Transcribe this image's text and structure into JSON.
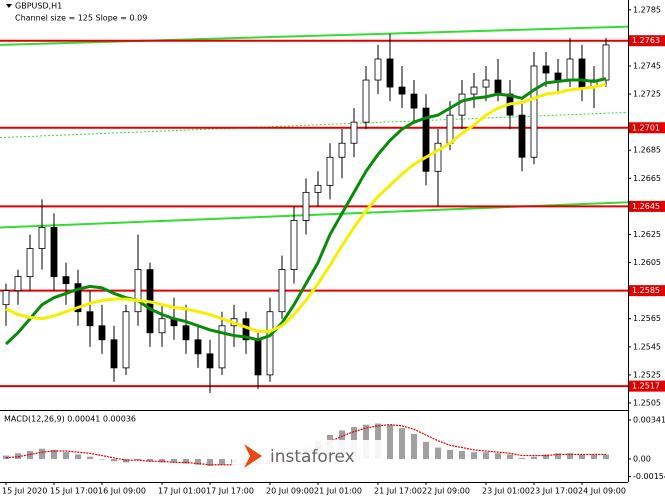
{
  "chart_data": {
    "type": "candlestick",
    "title": "GBPUSD,H1",
    "subtitle": "Channel size = 125 Slope = 0.09",
    "categories": [
      "15 Jul 2020",
      null,
      null,
      null,
      "15 Jul 17:00",
      null,
      null,
      null,
      "16 Jul 09:00",
      null,
      null,
      null,
      null,
      "17 Jul 01:00",
      null,
      null,
      null,
      "17 Jul 17:00",
      null,
      null,
      null,
      null,
      "20 Jul 09:00",
      null,
      null,
      null,
      "21 Jul 01:00",
      null,
      null,
      null,
      null,
      "21 Jul 17:00",
      null,
      null,
      null,
      "22 Jul 09:00",
      null,
      null,
      null,
      null,
      "23 Jul 01:00",
      null,
      null,
      null,
      "23 Jul 17:00",
      null,
      null,
      null,
      "24 Jul 09:00",
      null,
      null
    ],
    "open": [
      1.2575,
      1.2585,
      1.2595,
      1.2615,
      1.263,
      1.2595,
      1.259,
      1.257,
      1.256,
      1.255,
      1.253,
      1.257,
      1.26,
      1.2555,
      1.2565,
      1.256,
      1.255,
      1.254,
      1.253,
      1.256,
      1.2565,
      1.255,
      1.2525,
      1.257,
      1.26,
      1.2635,
      1.2655,
      1.266,
      1.268,
      1.269,
      1.2705,
      1.2735,
      1.275,
      1.273,
      1.2725,
      1.2715,
      1.267,
      1.269,
      1.271,
      1.2725,
      1.273,
      1.2735,
      1.2725,
      1.271,
      1.268,
      1.2745,
      1.274,
      1.2735,
      1.275,
      1.273,
      1.2735
    ],
    "high": [
      1.259,
      1.26,
      1.2625,
      1.265,
      1.264,
      1.2605,
      1.26,
      1.2585,
      1.2575,
      1.256,
      1.2575,
      1.2625,
      1.2605,
      1.2575,
      1.258,
      1.2575,
      1.256,
      1.255,
      1.257,
      1.2575,
      1.257,
      1.2555,
      1.258,
      1.261,
      1.2645,
      1.2665,
      1.267,
      1.269,
      1.27,
      1.2715,
      1.2745,
      1.276,
      1.2768,
      1.2745,
      1.2735,
      1.2725,
      1.27,
      1.272,
      1.2735,
      1.274,
      1.2745,
      1.275,
      1.2735,
      1.272,
      1.2755,
      1.2755,
      1.275,
      1.2765,
      1.276,
      1.2745,
      1.2765
    ],
    "low": [
      1.256,
      1.2575,
      1.2585,
      1.26,
      1.2585,
      1.2575,
      1.256,
      1.2545,
      1.254,
      1.252,
      1.2525,
      1.256,
      1.2545,
      1.2545,
      1.255,
      1.254,
      1.253,
      1.2512,
      1.2525,
      1.2545,
      1.254,
      1.2515,
      1.252,
      1.2565,
      1.259,
      1.2625,
      1.2645,
      1.265,
      1.2665,
      1.268,
      1.27,
      1.2725,
      1.272,
      1.2715,
      1.2705,
      1.266,
      1.2645,
      1.2685,
      1.27,
      1.2715,
      1.272,
      1.272,
      1.27,
      1.267,
      1.2675,
      1.273,
      1.2725,
      1.273,
      1.272,
      1.2715,
      1.273
    ],
    "close": [
      1.2585,
      1.2595,
      1.2615,
      1.263,
      1.2595,
      1.259,
      1.257,
      1.256,
      1.255,
      1.253,
      1.257,
      1.26,
      1.2555,
      1.2565,
      1.256,
      1.255,
      1.254,
      1.253,
      1.256,
      1.2565,
      1.255,
      1.2525,
      1.257,
      1.26,
      1.2635,
      1.2655,
      1.266,
      1.268,
      1.269,
      1.2705,
      1.2735,
      1.275,
      1.273,
      1.2725,
      1.2715,
      1.267,
      1.269,
      1.271,
      1.2725,
      1.273,
      1.2735,
      1.2725,
      1.271,
      1.268,
      1.2745,
      1.274,
      1.2735,
      1.275,
      1.273,
      1.2735,
      1.276
    ],
    "series": [
      {
        "color": "#0a8a0a",
        "values": [
          1.2547,
          1.2555,
          1.2565,
          1.2575,
          1.258,
          1.2583,
          1.2586,
          1.2588,
          1.2587,
          1.2583,
          1.258,
          1.2578,
          1.2572,
          1.2568,
          1.2565,
          1.2563,
          1.256,
          1.2557,
          1.2555,
          1.2553,
          1.2552,
          1.255,
          1.2553,
          1.2562,
          1.2575,
          1.259,
          1.2605,
          1.2625,
          1.264,
          1.2655,
          1.267,
          1.2682,
          1.2692,
          1.27,
          1.2705,
          1.2708,
          1.271,
          1.2715,
          1.272,
          1.2722,
          1.2723,
          1.2725,
          1.2724,
          1.2722,
          1.2728,
          1.2733,
          1.2734,
          1.2735,
          1.2735,
          1.2734,
          1.2736
        ]
      },
      {
        "color": "#f5f000",
        "values": [
          1.2572,
          1.2568,
          1.2566,
          1.2565,
          1.2567,
          1.257,
          1.2573,
          1.2576,
          1.2578,
          1.2579,
          1.2579,
          1.2578,
          1.2577,
          1.2575,
          1.2573,
          1.2572,
          1.257,
          1.2568,
          1.2565,
          1.2562,
          1.2559,
          1.2556,
          1.2556,
          1.256,
          1.2568,
          1.2578,
          1.259,
          1.2603,
          1.2617,
          1.263,
          1.2642,
          1.2652,
          1.266,
          1.2668,
          1.2675,
          1.268,
          1.2685,
          1.269,
          1.2697,
          1.2703,
          1.271,
          1.2715,
          1.2718,
          1.2719,
          1.2722,
          1.2725,
          1.2726,
          1.2728,
          1.2729,
          1.273,
          1.2732
        ]
      }
    ],
    "channel": {
      "upper": [
        1.276,
        1.2773
      ],
      "middle": [
        1.2694,
        1.2712
      ],
      "lower": [
        1.263,
        1.2648
      ],
      "color": "#33dd33"
    },
    "levels": [
      1.2763,
      1.2701,
      1.2645,
      1.2585,
      1.2517
    ],
    "level_color": "#e00000",
    "ylim": [
      1.25,
      1.2792
    ],
    "yticks": [
      1.2785,
      1.2745,
      1.2725,
      1.2685,
      1.2665,
      1.2625,
      1.2605,
      1.2565,
      1.2545,
      1.2525,
      1.2505
    ],
    "macd": {
      "label": "MACD(12,26,9) 0.00041 0.00036",
      "histogram": [
        0.0003,
        0.0005,
        0.0007,
        0.0009,
        0.0008,
        0.0006,
        0.0004,
        0.0002,
        0.0,
        -0.0002,
        -0.0003,
        -0.0001,
        -0.0002,
        -0.0003,
        -0.0003,
        -0.0004,
        -0.0005,
        -0.0006,
        -0.0005,
        -0.0004,
        -0.0004,
        -0.0005,
        -0.0004,
        -0.0001,
        0.0004,
        0.001,
        0.0016,
        0.0021,
        0.0025,
        0.0028,
        0.003,
        0.0031,
        0.003,
        0.0027,
        0.0022,
        0.0015,
        0.001,
        0.0008,
        0.0007,
        0.0006,
        0.0006,
        0.0005,
        0.0004,
        0.0001,
        0.0002,
        0.0004,
        0.0005,
        0.0005,
        0.0004,
        0.0004,
        0.0004
      ],
      "signal": [
        0.0001,
        0.0002,
        0.0004,
        0.0006,
        0.0007,
        0.0007,
        0.0006,
        0.0005,
        0.0003,
        0.0001,
        -0.0001,
        -0.0001,
        -0.0002,
        -0.0002,
        -0.0003,
        -0.0003,
        -0.0004,
        -0.0005,
        -0.0005,
        -0.0005,
        -0.0004,
        -0.0004,
        -0.0004,
        -0.0003,
        0.0,
        0.0005,
        0.001,
        0.0015,
        0.002,
        0.0024,
        0.0027,
        0.0029,
        0.003,
        0.0029,
        0.0026,
        0.0021,
        0.0016,
        0.0012,
        0.001,
        0.0008,
        0.0007,
        0.0006,
        0.0005,
        0.0003,
        0.0003,
        0.0003,
        0.0004,
        0.0004,
        0.0004,
        0.0004,
        0.0004
      ],
      "histogram_color": "#a0a0a0",
      "signal_color": "#e00000",
      "y2lim": [
        -0.00201,
        0.00411
      ],
      "y2ticks": [
        0.00341,
        {
          "value": 0,
          "label": "0.00"
        },
        -0.00154
      ]
    },
    "watermark": "instaforex"
  }
}
